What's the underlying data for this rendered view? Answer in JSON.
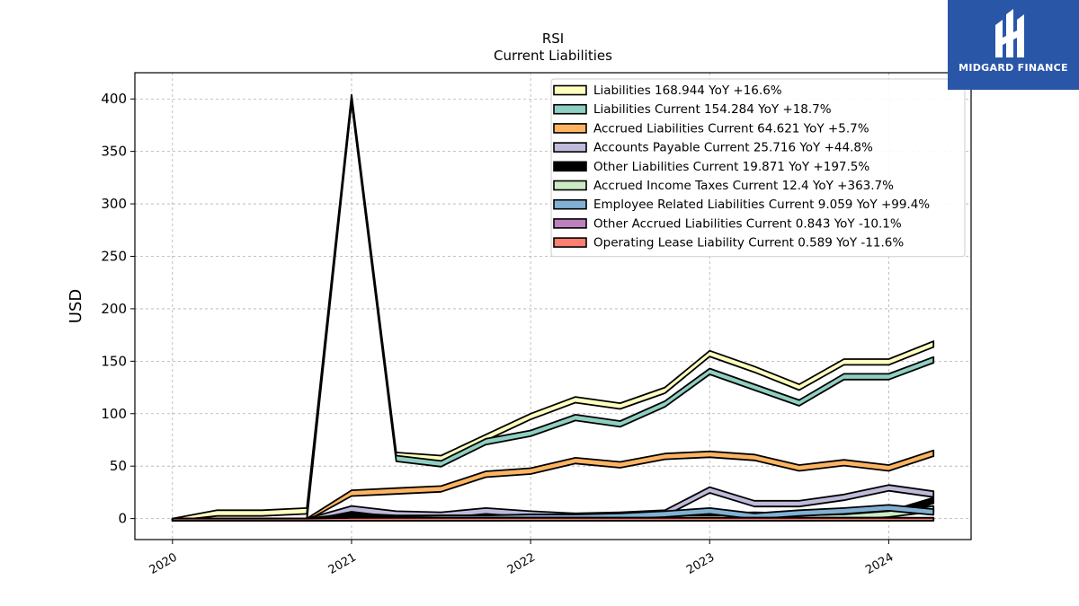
{
  "chart_data": {
    "type": "area",
    "title": "RSI",
    "subtitle": "Current  Liabilities",
    "xlabel": "",
    "ylabel": "USD",
    "ylim": [
      -20,
      425
    ],
    "xlim": [
      2019.79,
      2024.46
    ],
    "yticks": [
      0,
      50,
      100,
      150,
      200,
      250,
      300,
      350,
      400
    ],
    "xticks": [
      {
        "value": 2020,
        "label": "2020"
      },
      {
        "value": 2021,
        "label": "2021"
      },
      {
        "value": 2022,
        "label": "2022"
      },
      {
        "value": 2023,
        "label": "2023"
      },
      {
        "value": 2024,
        "label": "2024"
      }
    ],
    "grid": true,
    "legend_position": "top-right",
    "x": [
      2020.0,
      2020.25,
      2020.5,
      2020.75,
      2021.0,
      2021.25,
      2021.5,
      2021.75,
      2022.0,
      2022.25,
      2022.5,
      2022.75,
      2023.0,
      2023.25,
      2023.5,
      2023.75,
      2024.0,
      2024.25
    ],
    "series": [
      {
        "name": "Liabilities",
        "legend": "Liabilities  168.944 YoY +16.6%",
        "color": "#ffffbf",
        "values": [
          0,
          8,
          8,
          10,
          404,
          63,
          60,
          80,
          100,
          116,
          110,
          125,
          160,
          145,
          128,
          152,
          152,
          169
        ]
      },
      {
        "name": "Liabilities Current",
        "legend": "Liabilities Current  154.284 YoY +18.7%",
        "color": "#8ecfc1",
        "values": [
          0,
          0,
          0,
          0,
          402,
          60,
          55,
          76,
          84,
          99,
          93,
          112,
          143,
          128,
          113,
          138,
          138,
          154
        ]
      },
      {
        "name": "Accrued Liabilities Current",
        "legend": "Accrued Liabilities Current  64.621 YoY +5.7%",
        "color": "#fdb462",
        "values": [
          0,
          0,
          0,
          0,
          27,
          29,
          31,
          45,
          48,
          58,
          54,
          62,
          64,
          61,
          51,
          56,
          51,
          65
        ]
      },
      {
        "name": "Accounts Payable Current",
        "legend": "Accounts Payable Current  25.716 YoY +44.8%",
        "color": "#bebada",
        "values": [
          0,
          0,
          0,
          0,
          12,
          7,
          6,
          10,
          7,
          5,
          6,
          8,
          30,
          17,
          17,
          23,
          32,
          26
        ]
      },
      {
        "name": "Other Liabilities Current",
        "legend": "Other Liabilities Current  19.871 YoY +197.5%",
        "color": "#000000",
        "values": [
          0,
          0,
          0,
          0,
          5,
          3,
          3,
          3,
          4,
          4,
          4,
          4,
          5,
          6,
          5,
          6,
          7,
          20
        ]
      },
      {
        "name": "Accrued Income Taxes Current",
        "legend": "Accrued Income Taxes Current  12.4 YoY +363.7%",
        "color": "#ccebc5",
        "values": [
          0,
          0,
          0,
          0,
          2,
          2,
          2,
          2,
          2,
          3,
          3,
          3,
          3,
          3,
          3,
          4,
          7,
          12
        ]
      },
      {
        "name": "Employee Related Liabilities Current",
        "legend": "Employee Related Liabilities Current  9.059 YoY +99.4%",
        "color": "#80b1d3",
        "values": [
          0,
          0,
          0,
          0,
          2,
          2,
          3,
          3,
          4,
          4,
          5,
          7,
          10,
          5,
          8,
          10,
          13,
          9
        ]
      },
      {
        "name": "Other Accrued Liabilities Current",
        "legend": "Other Accrued Liabilities Current  0.843 YoY -10.1%",
        "color": "#bc80bd",
        "values": [
          0,
          0,
          0,
          0,
          1,
          1,
          1,
          1,
          1,
          1,
          1,
          1,
          1,
          1,
          1,
          1,
          1,
          0.8
        ]
      },
      {
        "name": "Operating Lease Liability Current",
        "legend": "Operating Lease Liability Current  0.589 YoY -11.6%",
        "color": "#fb8072",
        "values": [
          0,
          0,
          0,
          0,
          0.6,
          0.6,
          0.6,
          0.6,
          0.6,
          0.6,
          0.6,
          0.6,
          0.6,
          0.6,
          0.6,
          0.6,
          0.6,
          0.6
        ]
      }
    ]
  },
  "logo": {
    "text": "MIDGARD FINANCE"
  }
}
